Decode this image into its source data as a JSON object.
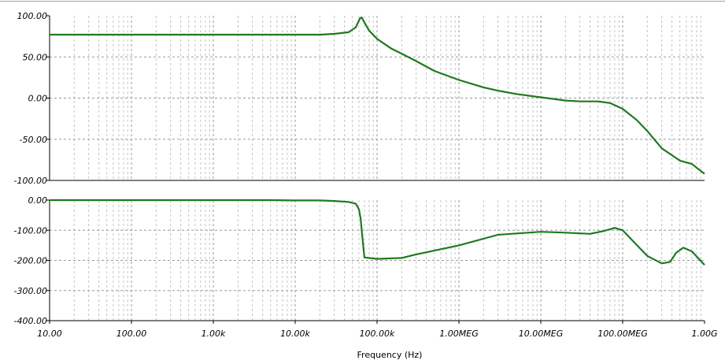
{
  "window": {
    "top_border_color": "#a0a0a0"
  },
  "chart_data": [
    {
      "type": "line",
      "panel": "magnitude",
      "xlabel": "",
      "ylabel": "",
      "xscale": "log",
      "xlim": [
        10,
        1000000000
      ],
      "ylim": [
        -100,
        100
      ],
      "yticks": [
        "100.00",
        "50.00",
        "0.00",
        "-50.00",
        "-100.00"
      ],
      "grid": true,
      "line_color": "#1f7a1f",
      "x": [
        10,
        20000,
        30000,
        45000,
        55000,
        62000,
        65000,
        70000,
        80000,
        100000,
        150000,
        200000,
        300000,
        500000,
        1000000,
        2000000,
        3000000,
        5000000,
        10000000,
        20000000,
        30000000,
        50000000,
        70000000,
        100000000,
        150000000,
        200000000,
        300000000,
        500000000,
        700000000,
        1000000000
      ],
      "values": [
        77,
        77,
        78,
        80,
        86,
        97,
        98,
        92,
        82,
        72,
        60,
        54,
        45,
        33,
        22,
        13,
        9,
        5,
        1,
        -3,
        -4,
        -4,
        -6,
        -13,
        -27,
        -40,
        -61,
        -76,
        -80,
        -92
      ]
    },
    {
      "type": "line",
      "panel": "phase",
      "xlabel": "Frequency (Hz)",
      "ylabel": "",
      "xscale": "log",
      "xlim": [
        10,
        1000000000
      ],
      "ylim": [
        -400,
        0
      ],
      "yticks": [
        "0.00",
        "-100.00",
        "-200.00",
        "-300.00",
        "-400.00"
      ],
      "xticks": [
        "10.00",
        "100.00",
        "1.00k",
        "10.00k",
        "100.00k",
        "1.00MEG",
        "10.00MEG",
        "100.00MEG",
        "1.00G"
      ],
      "grid": true,
      "line_color": "#1f7a1f",
      "x": [
        10,
        5000,
        10000,
        20000,
        30000,
        45000,
        55000,
        60000,
        63000,
        66000,
        70000,
        100000,
        200000,
        300000,
        1000000,
        3000000,
        10000000,
        20000000,
        40000000,
        60000000,
        80000000,
        100000000,
        150000000,
        200000000,
        300000000,
        380000000,
        450000000,
        550000000,
        700000000,
        1000000000
      ],
      "values": [
        0,
        0,
        -1,
        -1,
        -3,
        -6,
        -12,
        -30,
        -60,
        -120,
        -190,
        -195,
        -192,
        -180,
        -150,
        -115,
        -105,
        -108,
        -112,
        -102,
        -92,
        -100,
        -150,
        -185,
        -210,
        -205,
        -175,
        -158,
        -170,
        -215
      ]
    }
  ]
}
